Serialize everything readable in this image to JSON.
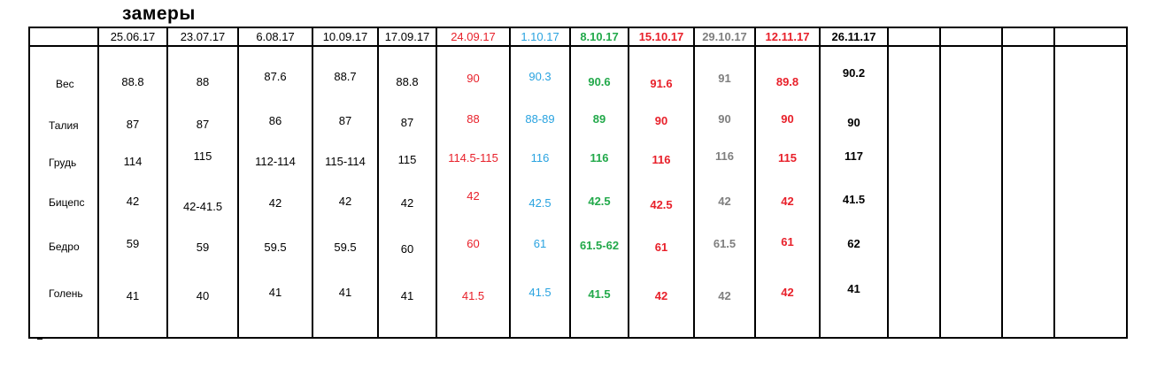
{
  "title": "замеры",
  "colors": {
    "black": "#000000",
    "red": "#e8202a",
    "blue": "#29a3e0",
    "green": "#22a94a",
    "gray": "#7f7f7f"
  },
  "columns": [
    {
      "date": "25.06.17",
      "color": "#000000",
      "bold": false
    },
    {
      "date": "23.07.17",
      "color": "#000000",
      "bold": false
    },
    {
      "date": "6.08.17",
      "color": "#000000",
      "bold": false
    },
    {
      "date": "10.09.17",
      "color": "#000000",
      "bold": false
    },
    {
      "date": "17.09.17",
      "color": "#000000",
      "bold": false
    },
    {
      "date": "24.09.17",
      "color": "#e8202a",
      "bold": false
    },
    {
      "date": "1.10.17",
      "color": "#29a3e0",
      "bold": false
    },
    {
      "date": "8.10.17",
      "color": "#22a94a",
      "bold": true
    },
    {
      "date": "15.10.17",
      "color": "#e8202a",
      "bold": true
    },
    {
      "date": "29.10.17",
      "color": "#7f7f7f",
      "bold": true
    },
    {
      "date": "12.11.17",
      "color": "#e8202a",
      "bold": true
    },
    {
      "date": "26.11.17",
      "color": "#000000",
      "bold": true
    },
    {
      "date": "",
      "color": "#000000",
      "bold": false
    },
    {
      "date": "",
      "color": "#000000",
      "bold": false
    },
    {
      "date": "",
      "color": "#000000",
      "bold": false
    },
    {
      "date": "",
      "color": "#000000",
      "bold": false
    }
  ],
  "rows": [
    {
      "label": "Вес",
      "values": [
        "88.8",
        "88",
        "87.6",
        "88.7",
        "88.8",
        "90",
        "90.3",
        "90.6",
        "91.6",
        "91",
        "89.8",
        "90.2"
      ]
    },
    {
      "label": "Талия",
      "values": [
        "87",
        "87",
        "86",
        "87",
        "87",
        "88",
        "88-89",
        "89",
        "90",
        "90",
        "90",
        "90"
      ]
    },
    {
      "label": "Грудь",
      "values": [
        "114",
        "115",
        "112-114",
        "115-114",
        "115",
        "114.5-115",
        "116",
        "116",
        "116",
        "116",
        "115",
        "117"
      ]
    },
    {
      "label": "Бицепс",
      "values": [
        "42",
        "42-41.5",
        "42",
        "42",
        "42",
        "42",
        "42.5",
        "42.5",
        "42.5",
        "42",
        "42",
        "41.5"
      ]
    },
    {
      "label": "Бедро",
      "values": [
        "59",
        "59",
        "59.5",
        "59.5",
        "60",
        "60",
        "61",
        "61.5-62",
        "61",
        "61.5",
        "61",
        "62"
      ]
    },
    {
      "label": "Голень",
      "values": [
        "41",
        "40",
        "41",
        "41",
        "41",
        "41.5",
        "41.5",
        "41.5",
        "42",
        "42",
        "42",
        "41"
      ]
    }
  ]
}
